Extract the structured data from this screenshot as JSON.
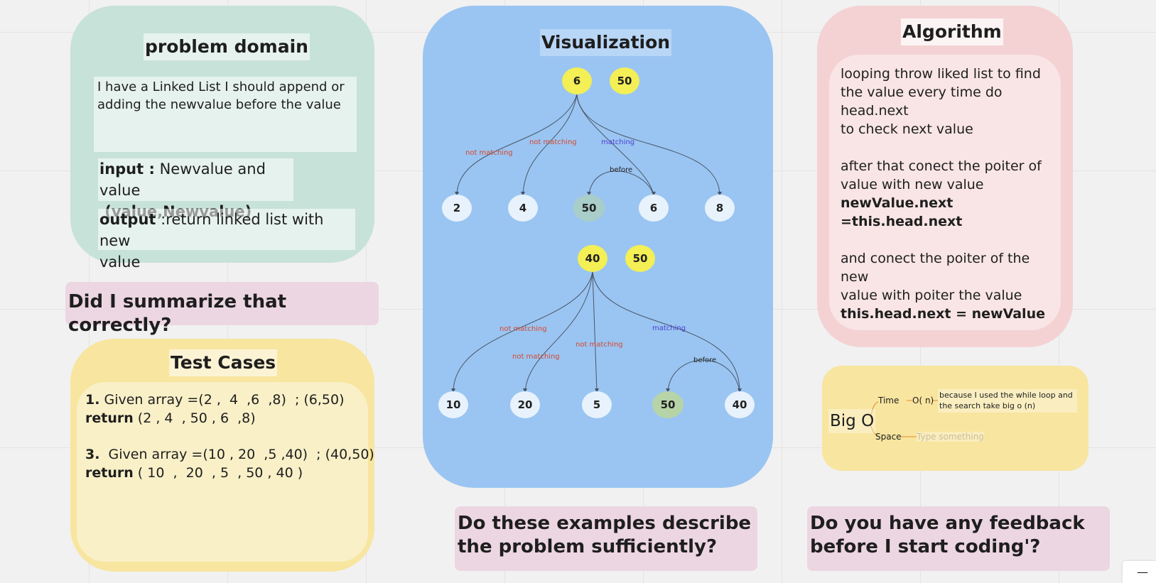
{
  "colors": {
    "green_panel": "#c7e2d9",
    "blue_panel": "#9ac5f2",
    "pink_panel": "#f4d2d4",
    "yellow_panel": "#f8e59f",
    "question_bg": "#ecd6e1",
    "node_yellow": "#f3ef55",
    "node_white": "#e8f2fc",
    "node_teal": "#a9cdc8",
    "node_green": "#b6d4a7",
    "label_red": "#d9472c",
    "label_blue": "#4b3fd1"
  },
  "problem_domain": {
    "title": "problem domain",
    "description_line1": "I have a  Linked List I should append or",
    "description_line2": "adding the newvalue before the value",
    "input_label": "input :",
    "input_text": " Newvalue and value",
    "input_args": " (value,Newvalue)",
    "output_label": "output",
    "output_text": " :return linked list with new",
    "output_text2": "value"
  },
  "q_summary": "Did I summarize that correctly?",
  "test_cases": {
    "title": "Test Cases",
    "case1_num": "1.",
    "case1_text": " Given array =(2 ,  4  ,6  ,8)  ; (6,50)",
    "case1_ret_label": "return",
    "case1_ret": " (2 , 4  , 50 , 6  ,8)",
    "case3_num": "3.",
    "case3_text": "  Given array =(10 , 20  ,5 ,40)  ; (40,50)",
    "case3_ret_label": "return",
    "case3_ret": " ( 10  ,  20  , 5  , 50 , 40 )"
  },
  "visualization": {
    "title": "Visualization",
    "tree1": {
      "root": "6",
      "new": "50",
      "children": [
        "2",
        "4",
        "50",
        "6",
        "8"
      ],
      "edge_labels": [
        "not matching",
        "not matching",
        "matching",
        "before"
      ]
    },
    "tree2": {
      "root": "40",
      "new": "50",
      "children": [
        "10",
        "20",
        "5",
        "50",
        "40"
      ],
      "edge_labels": [
        "not matching",
        "not matching",
        "not matching",
        "matching",
        "before"
      ]
    }
  },
  "q_examples": "Do these examples describe the problem sufficiently?",
  "algorithm": {
    "title": "Algorithm",
    "lines": [
      "looping throw liked list to find",
      "the value every time do",
      "head.next",
      "to check next value",
      "",
      "after that conect the poiter of",
      "value with new value"
    ],
    "code1": "newValue.next =this.head.next",
    "lines2": [
      "and conect the poiter of the new",
      "value with poiter the value"
    ],
    "code2": "this.head.next = newValue"
  },
  "big_o": {
    "label": "Big O",
    "time_label": "Time",
    "time_value": "O( n)",
    "time_note": "because I used the while loop and the search take big o (n)",
    "space_label": "Space",
    "space_placeholder": "Type something"
  },
  "q_feedback": "Do you have any feedback before I start coding'?",
  "corner_tool": "—"
}
